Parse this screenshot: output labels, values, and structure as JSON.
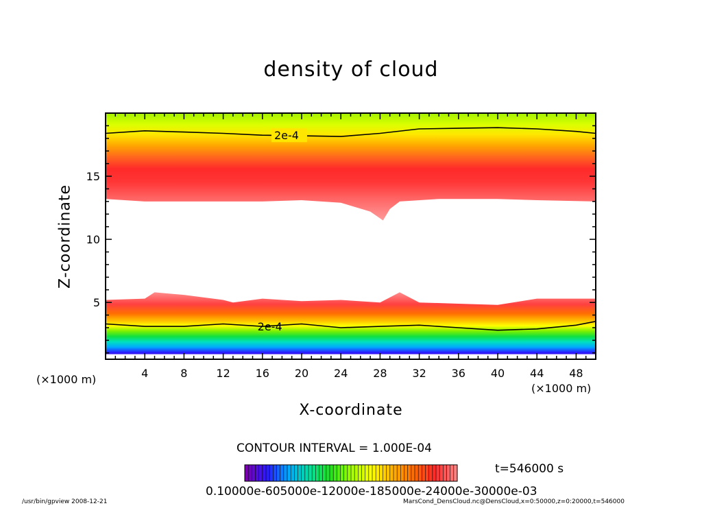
{
  "chart_data": {
    "type": "heatmap",
    "title": "density of cloud",
    "xlabel": "X-coordinate",
    "ylabel": "Z-coordinate",
    "x_unit": "(×1000 m)",
    "xlim": [
      0,
      50
    ],
    "ylim": [
      0.5,
      20
    ],
    "x_ticks": [
      "4",
      "8",
      "12",
      "16",
      "20",
      "24",
      "28",
      "32",
      "36",
      "40",
      "44",
      "48"
    ],
    "y_ticks": [
      "5",
      "10",
      "15"
    ],
    "contour_interval_text": "CONTOUR INTERVAL = 1.000E-04",
    "contour_label": "2e-4",
    "time_text": "t=546000 s",
    "colorbar_labels_text": "0.10000e-605000e-12000e-185000e-24000e-30000e-03",
    "colormap": [
      "#7a00b0",
      "#2a1aff",
      "#00a8ff",
      "#00e0a0",
      "#20e020",
      "#a0ff00",
      "#ffff00",
      "#ffb000",
      "#ff6a00",
      "#ff2a2a",
      "#ff8080"
    ],
    "upper_layer": {
      "top_contour_2e-4": [
        [
          0,
          18.4
        ],
        [
          4,
          18.6
        ],
        [
          8,
          18.5
        ],
        [
          12,
          18.4
        ],
        [
          16,
          18.25
        ],
        [
          20,
          18.2
        ],
        [
          24,
          18.15
        ],
        [
          28,
          18.4
        ],
        [
          32,
          18.75
        ],
        [
          36,
          18.8
        ],
        [
          40,
          18.85
        ],
        [
          44,
          18.75
        ],
        [
          48,
          18.55
        ],
        [
          50,
          18.4
        ]
      ],
      "bottom_edge": [
        [
          0,
          13.2
        ],
        [
          4,
          13.0
        ],
        [
          8,
          13.0
        ],
        [
          12,
          13.0
        ],
        [
          16,
          13.0
        ],
        [
          20,
          13.1
        ],
        [
          24,
          12.9
        ],
        [
          27,
          12.2
        ],
        [
          28.3,
          11.5
        ],
        [
          29,
          12.4
        ],
        [
          30,
          13.0
        ],
        [
          34,
          13.2
        ],
        [
          40,
          13.2
        ],
        [
          44,
          13.1
        ],
        [
          50,
          13.0
        ]
      ],
      "max_band_z": 15.2
    },
    "lower_layer": {
      "top_edge": [
        [
          0,
          5.2
        ],
        [
          4,
          5.3
        ],
        [
          5,
          5.8
        ],
        [
          8,
          5.6
        ],
        [
          12,
          5.2
        ],
        [
          13,
          5.0
        ],
        [
          16,
          5.3
        ],
        [
          20,
          5.1
        ],
        [
          24,
          5.2
        ],
        [
          28,
          5.0
        ],
        [
          30,
          5.8
        ],
        [
          32,
          5.0
        ],
        [
          36,
          4.9
        ],
        [
          40,
          4.8
        ],
        [
          44,
          5.3
        ],
        [
          48,
          5.3
        ],
        [
          50,
          5.3
        ]
      ],
      "contour_2e-4": [
        [
          0,
          3.3
        ],
        [
          4,
          3.1
        ],
        [
          8,
          3.1
        ],
        [
          12,
          3.3
        ],
        [
          16,
          3.1
        ],
        [
          20,
          3.3
        ],
        [
          24,
          3.0
        ],
        [
          28,
          3.1
        ],
        [
          32,
          3.2
        ],
        [
          36,
          3.0
        ],
        [
          40,
          2.8
        ],
        [
          44,
          2.9
        ],
        [
          48,
          3.2
        ],
        [
          50,
          3.5
        ]
      ],
      "bottom_edge": 0.9
    }
  },
  "footer": {
    "left": "/usr/bin/gpview   2008-12-21",
    "right": "MarsCond_DensCloud.nc@DensCloud,x=0:50000,z=0:20000,t=546000"
  }
}
